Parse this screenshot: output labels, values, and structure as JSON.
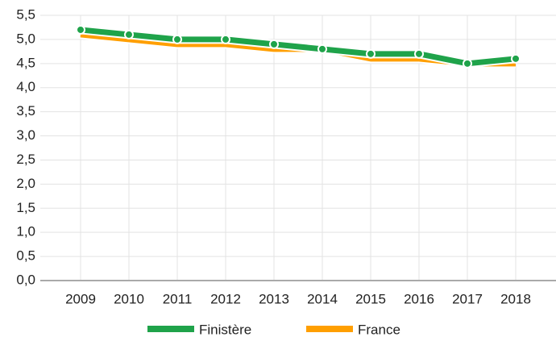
{
  "chart_data": {
    "type": "line",
    "categories": [
      "2009",
      "2010",
      "2011",
      "2012",
      "2013",
      "2014",
      "2015",
      "2016",
      "2017",
      "2018"
    ],
    "series": [
      {
        "name": "Finistère",
        "color": "#1fa34a",
        "values": [
          5.2,
          5.1,
          5.0,
          5.0,
          4.9,
          4.8,
          4.7,
          4.7,
          4.5,
          4.6
        ]
      },
      {
        "name": "France",
        "color": "#ff9f00",
        "values": [
          5.1,
          5.0,
          4.9,
          4.9,
          4.8,
          4.8,
          4.6,
          4.6,
          4.5,
          4.5
        ]
      }
    ],
    "ylim": [
      0,
      5.5
    ],
    "yticks": [
      {
        "value": 0,
        "label": "0,0"
      },
      {
        "value": 0.5,
        "label": "0,5"
      },
      {
        "value": 1,
        "label": "1,0"
      },
      {
        "value": 1.5,
        "label": "1,5"
      },
      {
        "value": 2,
        "label": "2,0"
      },
      {
        "value": 2.5,
        "label": "2,5"
      },
      {
        "value": 3,
        "label": "3,0"
      },
      {
        "value": 3.5,
        "label": "3,5"
      },
      {
        "value": 4,
        "label": "4,0"
      },
      {
        "value": 4.5,
        "label": "4,5"
      },
      {
        "value": 5,
        "label": "5,0"
      },
      {
        "value": 5.5,
        "label": "5,5"
      }
    ],
    "grid": true,
    "legend": "bottom"
  }
}
